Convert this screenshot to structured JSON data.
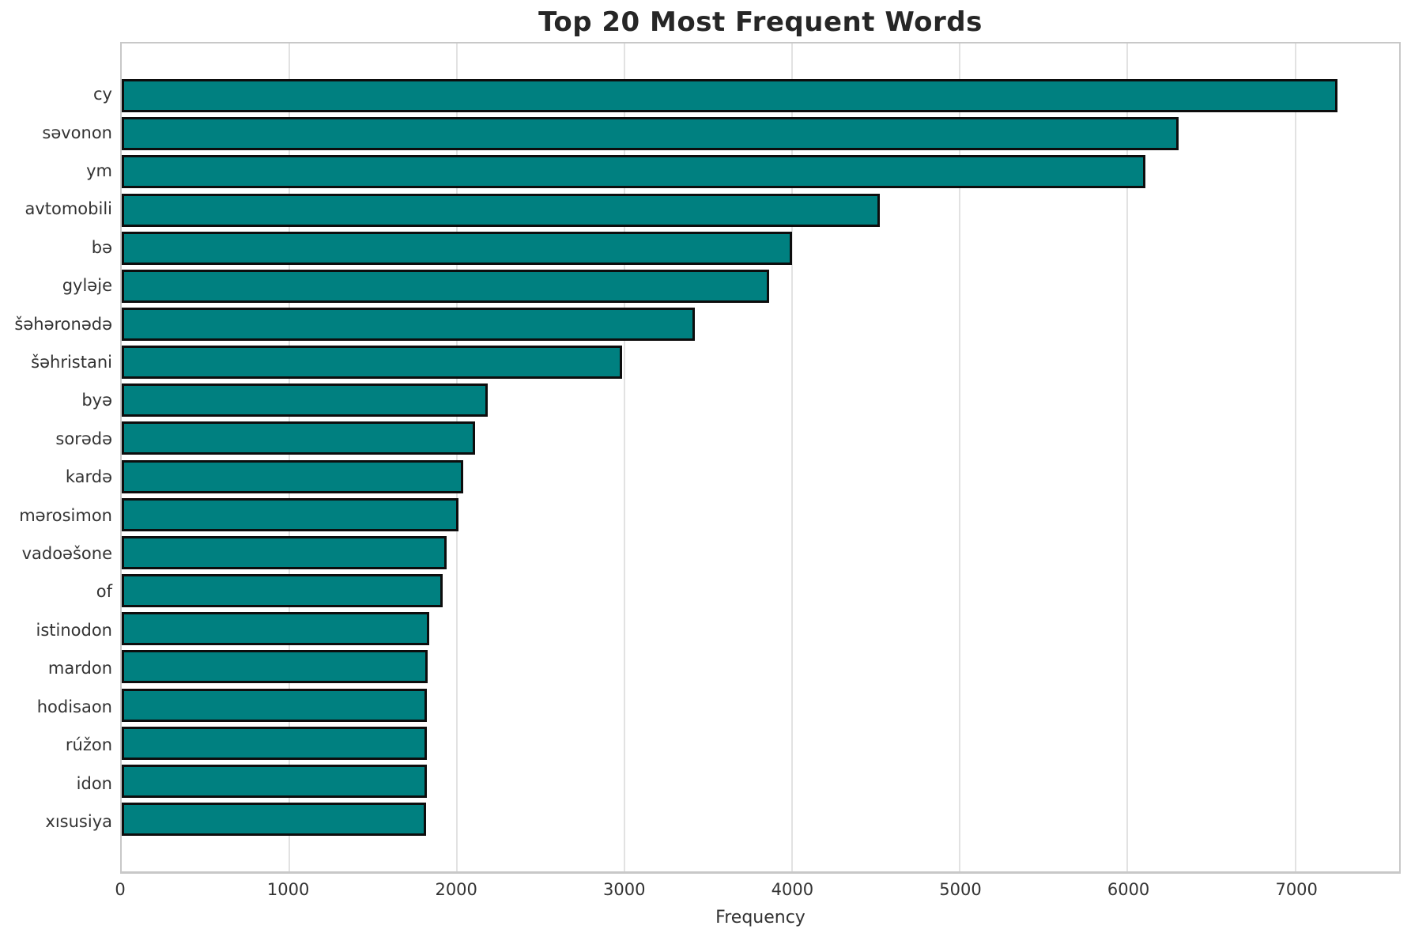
{
  "chart_data": {
    "type": "bar",
    "orientation": "horizontal",
    "title": "Top 20 Most Frequent Words",
    "xlabel": "Frequency",
    "ylabel": "",
    "categories": [
      "cy",
      "səvonon",
      "ym",
      "avtomobili",
      "bə",
      "gyləje",
      "šəhəronədə",
      "šəhristani",
      "byə",
      "sorədə",
      "kardə",
      "mərosimon",
      "vadoəšone",
      "of",
      "istinodon",
      "mardon",
      "hodisaon",
      "rúžon",
      "idon",
      "xısusiya"
    ],
    "values": [
      7250,
      6305,
      6105,
      4520,
      4000,
      3860,
      3420,
      2985,
      2185,
      2110,
      2035,
      2010,
      1940,
      1915,
      1835,
      1825,
      1822,
      1820,
      1818,
      1815
    ],
    "xlim": [
      0,
      7620
    ],
    "xticks": [
      0,
      1000,
      2000,
      3000,
      4000,
      5000,
      6000,
      7000
    ],
    "grid": "vertical",
    "grid_color": "#e2e2e2",
    "bar_color": "#008080",
    "bar_edge_color": "#0d0d0d",
    "background_color": "#ffffff",
    "title_color": "#262626",
    "tick_label_color": "#333333",
    "legend": null
  }
}
